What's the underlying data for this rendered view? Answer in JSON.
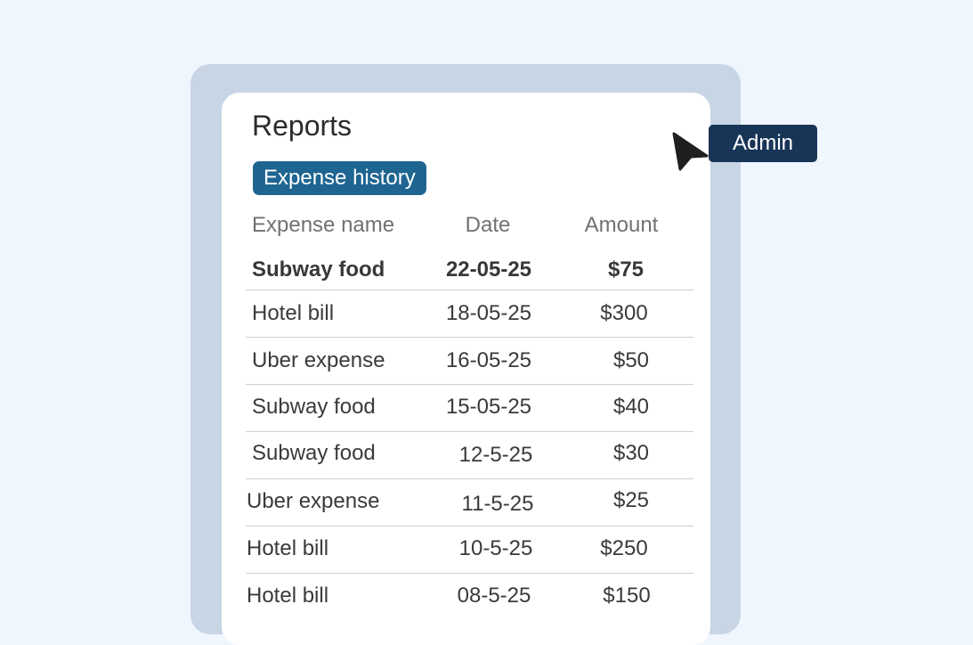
{
  "page": {
    "title": "Reports",
    "tab": "Expense history"
  },
  "table": {
    "headers": [
      "Expense name",
      "Date",
      "Amount"
    ],
    "rows": [
      {
        "name": "Subway food",
        "date": "22-05-25",
        "amount": "$75"
      },
      {
        "name": "Hotel bill",
        "date": "18-05-25",
        "amount": "$300"
      },
      {
        "name": "Uber expense",
        "date": "16-05-25",
        "amount": "$50"
      },
      {
        "name": "Subway food",
        "date": "15-05-25",
        "amount": "$40"
      },
      {
        "name": "Subway food",
        "date": "12-5-25",
        "amount": "$30"
      },
      {
        "name": "Uber expense",
        "date": "11-5-25",
        "amount": "$25"
      },
      {
        "name": "Hotel bill",
        "date": "10-5-25",
        "amount": "$250"
      },
      {
        "name": "Hotel bill",
        "date": "08-5-25",
        "amount": "$150"
      }
    ]
  },
  "pointer": {
    "label": "Admin",
    "icon": "cursor-arrow-icon"
  },
  "colors": {
    "background": "#eff6fe",
    "frame": "#c7d5e4",
    "chip": "#1f6592",
    "tag": "#183558"
  }
}
